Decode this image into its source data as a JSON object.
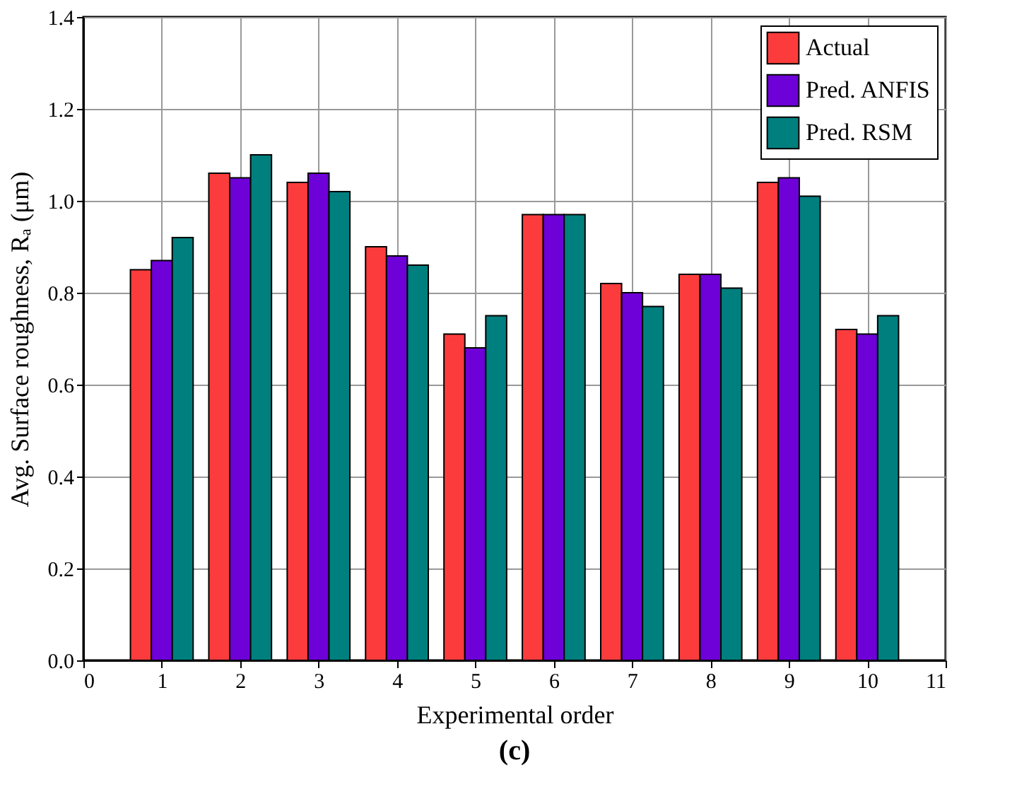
{
  "chart_data": {
    "type": "bar",
    "title": "(c)",
    "xlabel": "Experimental order",
    "ylabel": "Avg. Surface roughness, Rₐ (μm)",
    "x": [
      1,
      2,
      3,
      4,
      5,
      6,
      7,
      8,
      9,
      10
    ],
    "series": [
      {
        "name": "Actual",
        "color": "#fc3c3c",
        "values": [
          0.85,
          1.06,
          1.04,
          0.9,
          0.71,
          0.97,
          0.82,
          0.84,
          1.04,
          0.72
        ]
      },
      {
        "name": "Pred. ANFIS",
        "color": "#6e00d8",
        "values": [
          0.87,
          1.05,
          1.06,
          0.88,
          0.68,
          0.97,
          0.8,
          0.84,
          1.05,
          0.71
        ]
      },
      {
        "name": "Pred. RSM",
        "color": "#007f7f",
        "values": [
          0.92,
          1.1,
          1.02,
          0.86,
          0.75,
          0.97,
          0.77,
          0.81,
          1.01,
          0.75
        ]
      }
    ],
    "xlim": [
      0,
      11
    ],
    "xticks": [
      0,
      1,
      2,
      3,
      4,
      5,
      6,
      7,
      8,
      9,
      10,
      11
    ],
    "ylim": [
      0,
      1.4
    ],
    "yticks": [
      {
        "value": 0,
        "label": "0.0"
      },
      0.2,
      0.4,
      0.6,
      0.8,
      {
        "value": 1,
        "label": "1.0"
      },
      1.2,
      1.4
    ],
    "grid": true,
    "legend": "top right"
  }
}
